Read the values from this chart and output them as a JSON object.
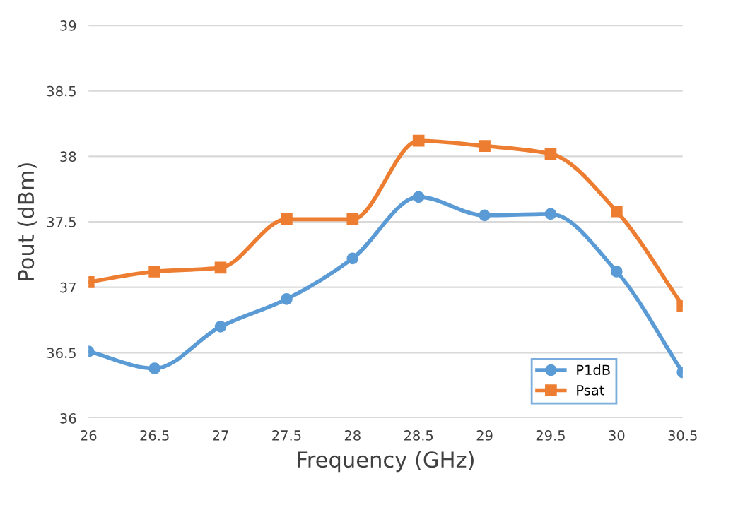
{
  "chart_data": {
    "type": "line",
    "xlabel": "Frequency (GHz)",
    "ylabel": "Pout (dBm)",
    "x": [
      26,
      26.5,
      27,
      27.5,
      28,
      28.5,
      29,
      29.5,
      30,
      30.5
    ],
    "series": [
      {
        "name": "P1dB",
        "color": "#5b9bd5",
        "values": [
          36.51,
          36.38,
          36.7,
          36.91,
          37.22,
          37.69,
          37.55,
          37.56,
          37.12,
          36.35
        ]
      },
      {
        "name": "Psat",
        "color": "#ed7d31",
        "marker": "square",
        "values": [
          37.04,
          37.12,
          37.15,
          37.52,
          37.52,
          38.12,
          38.08,
          38.02,
          37.58,
          36.86
        ]
      }
    ],
    "xlim": [
      26,
      30.5
    ],
    "xticks": [
      26,
      26.5,
      27,
      27.5,
      28,
      28.5,
      29,
      29.5,
      30,
      30.5
    ],
    "ylim": [
      36,
      39
    ],
    "yticks": [
      36,
      36.5,
      37,
      37.5,
      38,
      38.5,
      39
    ],
    "grid": "y",
    "legend": "bottom right",
    "marker": "circle",
    "line_style": "solid"
  }
}
